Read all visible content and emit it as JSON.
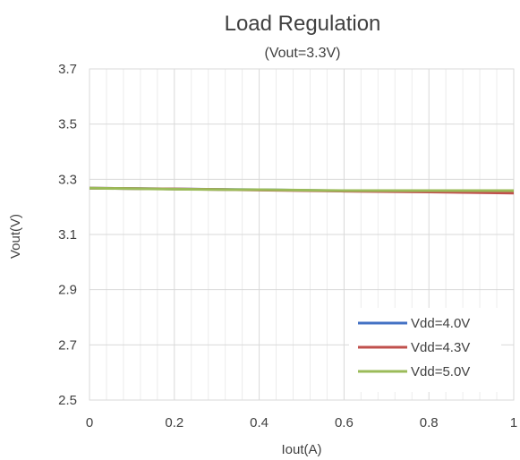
{
  "chart_data": {
    "type": "line",
    "title": "Load Regulation",
    "subtitle": "(Vout=3.3V)",
    "xlabel": "Iout(A)",
    "ylabel": "Vout(V)",
    "xlim": [
      0,
      1
    ],
    "ylim": [
      2.5,
      3.7
    ],
    "x_ticks": [
      "0",
      "0.2",
      "0.4",
      "0.6",
      "0.8",
      "1"
    ],
    "y_ticks": [
      "2.5",
      "2.7",
      "2.9",
      "3.1",
      "3.3",
      "3.5",
      "3.7"
    ],
    "grid": true,
    "legend_position": "bottom-right",
    "series": [
      {
        "name": "Vdd=4.0V",
        "color": "#4472C4",
        "x": [
          0,
          0.2,
          0.4,
          0.6,
          0.8,
          1.0
        ],
        "y": [
          3.268,
          3.265,
          3.262,
          3.258,
          3.256,
          3.255
        ]
      },
      {
        "name": "Vdd=4.3V",
        "color": "#C0504D",
        "x": [
          0,
          0.2,
          0.4,
          0.6,
          0.8,
          1.0
        ],
        "y": [
          3.268,
          3.265,
          3.261,
          3.257,
          3.254,
          3.25
        ]
      },
      {
        "name": "Vdd=5.0V",
        "color": "#9BBB59",
        "x": [
          0,
          0.2,
          0.4,
          0.6,
          0.8,
          1.0
        ],
        "y": [
          3.268,
          3.264,
          3.262,
          3.259,
          3.259,
          3.259
        ]
      }
    ]
  }
}
